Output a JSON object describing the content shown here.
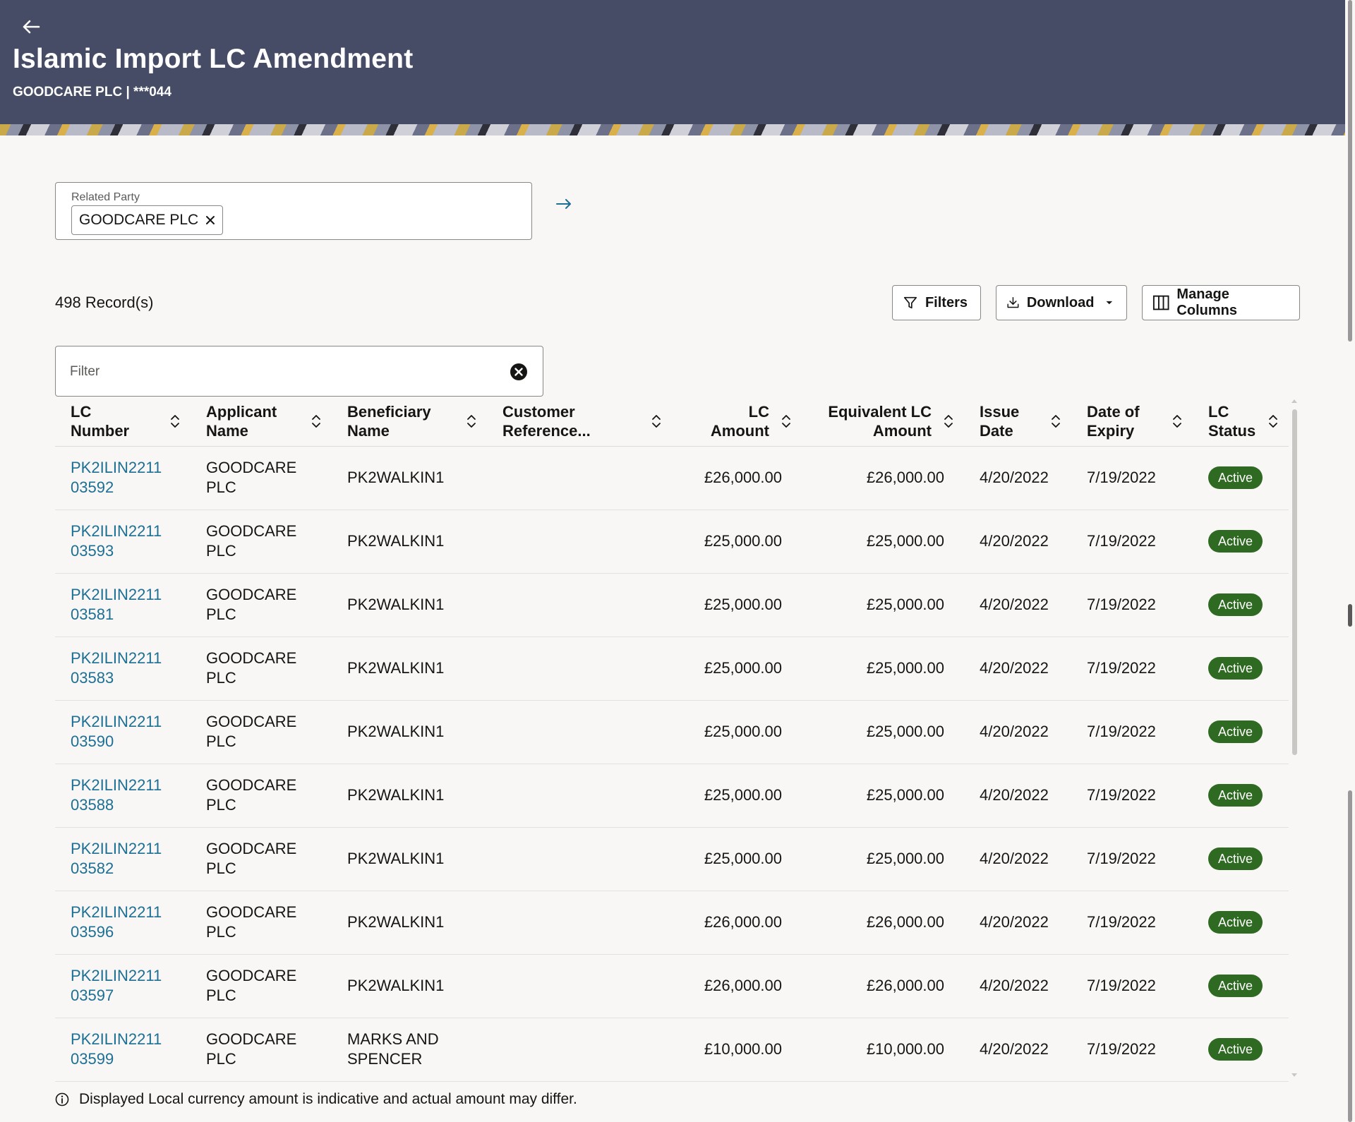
{
  "header": {
    "title": "Islamic Import LC Amendment",
    "subtitle": "GOODCARE PLC | ***044"
  },
  "related_party": {
    "label": "Related Party",
    "chip": "GOODCARE PLC"
  },
  "records": {
    "count_label": "498 Record(s)"
  },
  "toolbar": {
    "filters_label": "Filters",
    "download_label": "Download",
    "manage_columns_label": "Manage Columns"
  },
  "filter": {
    "placeholder": "Filter",
    "value": ""
  },
  "table": {
    "columns": [
      {
        "line1": "LC",
        "line2": "Number"
      },
      {
        "line1": "Applicant",
        "line2": "Name"
      },
      {
        "line1": "Beneficiary",
        "line2": "Name"
      },
      {
        "line1": "Customer",
        "line2": "Reference..."
      },
      {
        "line1": "LC",
        "line2": "Amount"
      },
      {
        "line1": "Equivalent LC",
        "line2": "Amount"
      },
      {
        "line1": "Issue",
        "line2": "Date"
      },
      {
        "line1": "Date of",
        "line2": "Expiry"
      },
      {
        "line1": "LC",
        "line2": "Status"
      }
    ],
    "rows": [
      {
        "lc_number": "PK2ILIN221103592",
        "applicant": "GOODCARE PLC",
        "beneficiary": "PK2WALKIN1",
        "customer_ref": "",
        "lc_amount": "£26,000.00",
        "equiv_amount": "£26,000.00",
        "issue_date": "4/20/2022",
        "expiry_date": "7/19/2022",
        "status": "Active"
      },
      {
        "lc_number": "PK2ILIN221103593",
        "applicant": "GOODCARE PLC",
        "beneficiary": "PK2WALKIN1",
        "customer_ref": "",
        "lc_amount": "£25,000.00",
        "equiv_amount": "£25,000.00",
        "issue_date": "4/20/2022",
        "expiry_date": "7/19/2022",
        "status": "Active"
      },
      {
        "lc_number": "PK2ILIN221103581",
        "applicant": "GOODCARE PLC",
        "beneficiary": "PK2WALKIN1",
        "customer_ref": "",
        "lc_amount": "£25,000.00",
        "equiv_amount": "£25,000.00",
        "issue_date": "4/20/2022",
        "expiry_date": "7/19/2022",
        "status": "Active"
      },
      {
        "lc_number": "PK2ILIN221103583",
        "applicant": "GOODCARE PLC",
        "beneficiary": "PK2WALKIN1",
        "customer_ref": "",
        "lc_amount": "£25,000.00",
        "equiv_amount": "£25,000.00",
        "issue_date": "4/20/2022",
        "expiry_date": "7/19/2022",
        "status": "Active"
      },
      {
        "lc_number": "PK2ILIN221103590",
        "applicant": "GOODCARE PLC",
        "beneficiary": "PK2WALKIN1",
        "customer_ref": "",
        "lc_amount": "£25,000.00",
        "equiv_amount": "£25,000.00",
        "issue_date": "4/20/2022",
        "expiry_date": "7/19/2022",
        "status": "Active"
      },
      {
        "lc_number": "PK2ILIN221103588",
        "applicant": "GOODCARE PLC",
        "beneficiary": "PK2WALKIN1",
        "customer_ref": "",
        "lc_amount": "£25,000.00",
        "equiv_amount": "£25,000.00",
        "issue_date": "4/20/2022",
        "expiry_date": "7/19/2022",
        "status": "Active"
      },
      {
        "lc_number": "PK2ILIN221103582",
        "applicant": "GOODCARE PLC",
        "beneficiary": "PK2WALKIN1",
        "customer_ref": "",
        "lc_amount": "£25,000.00",
        "equiv_amount": "£25,000.00",
        "issue_date": "4/20/2022",
        "expiry_date": "7/19/2022",
        "status": "Active"
      },
      {
        "lc_number": "PK2ILIN221103596",
        "applicant": "GOODCARE PLC",
        "beneficiary": "PK2WALKIN1",
        "customer_ref": "",
        "lc_amount": "£26,000.00",
        "equiv_amount": "£26,000.00",
        "issue_date": "4/20/2022",
        "expiry_date": "7/19/2022",
        "status": "Active"
      },
      {
        "lc_number": "PK2ILIN221103597",
        "applicant": "GOODCARE PLC",
        "beneficiary": "PK2WALKIN1",
        "customer_ref": "",
        "lc_amount": "£26,000.00",
        "equiv_amount": "£26,000.00",
        "issue_date": "4/20/2022",
        "expiry_date": "7/19/2022",
        "status": "Active"
      },
      {
        "lc_number": "PK2ILIN221103599",
        "applicant": "GOODCARE PLC",
        "beneficiary": "MARKS AND SPENCER",
        "customer_ref": "",
        "lc_amount": "£10,000.00",
        "equiv_amount": "£10,000.00",
        "issue_date": "4/20/2022",
        "expiry_date": "7/19/2022",
        "status": "Active"
      }
    ]
  },
  "footnote": {
    "text": "Displayed Local currency amount is indicative and actual amount may differ."
  },
  "icons": {
    "back": "arrow-left-icon",
    "chip_close": "close-icon",
    "go": "arrow-right-icon",
    "filters": "funnel-icon",
    "download": "download-icon",
    "dropdown": "caret-down-icon",
    "manage_columns": "columns-icon",
    "clear": "clear-circle-icon",
    "sort": "sort-icon",
    "info": "info-icon"
  },
  "colors": {
    "header_bg": "#464b66",
    "link": "#1d6f94",
    "status_active": "#2f6a22"
  }
}
